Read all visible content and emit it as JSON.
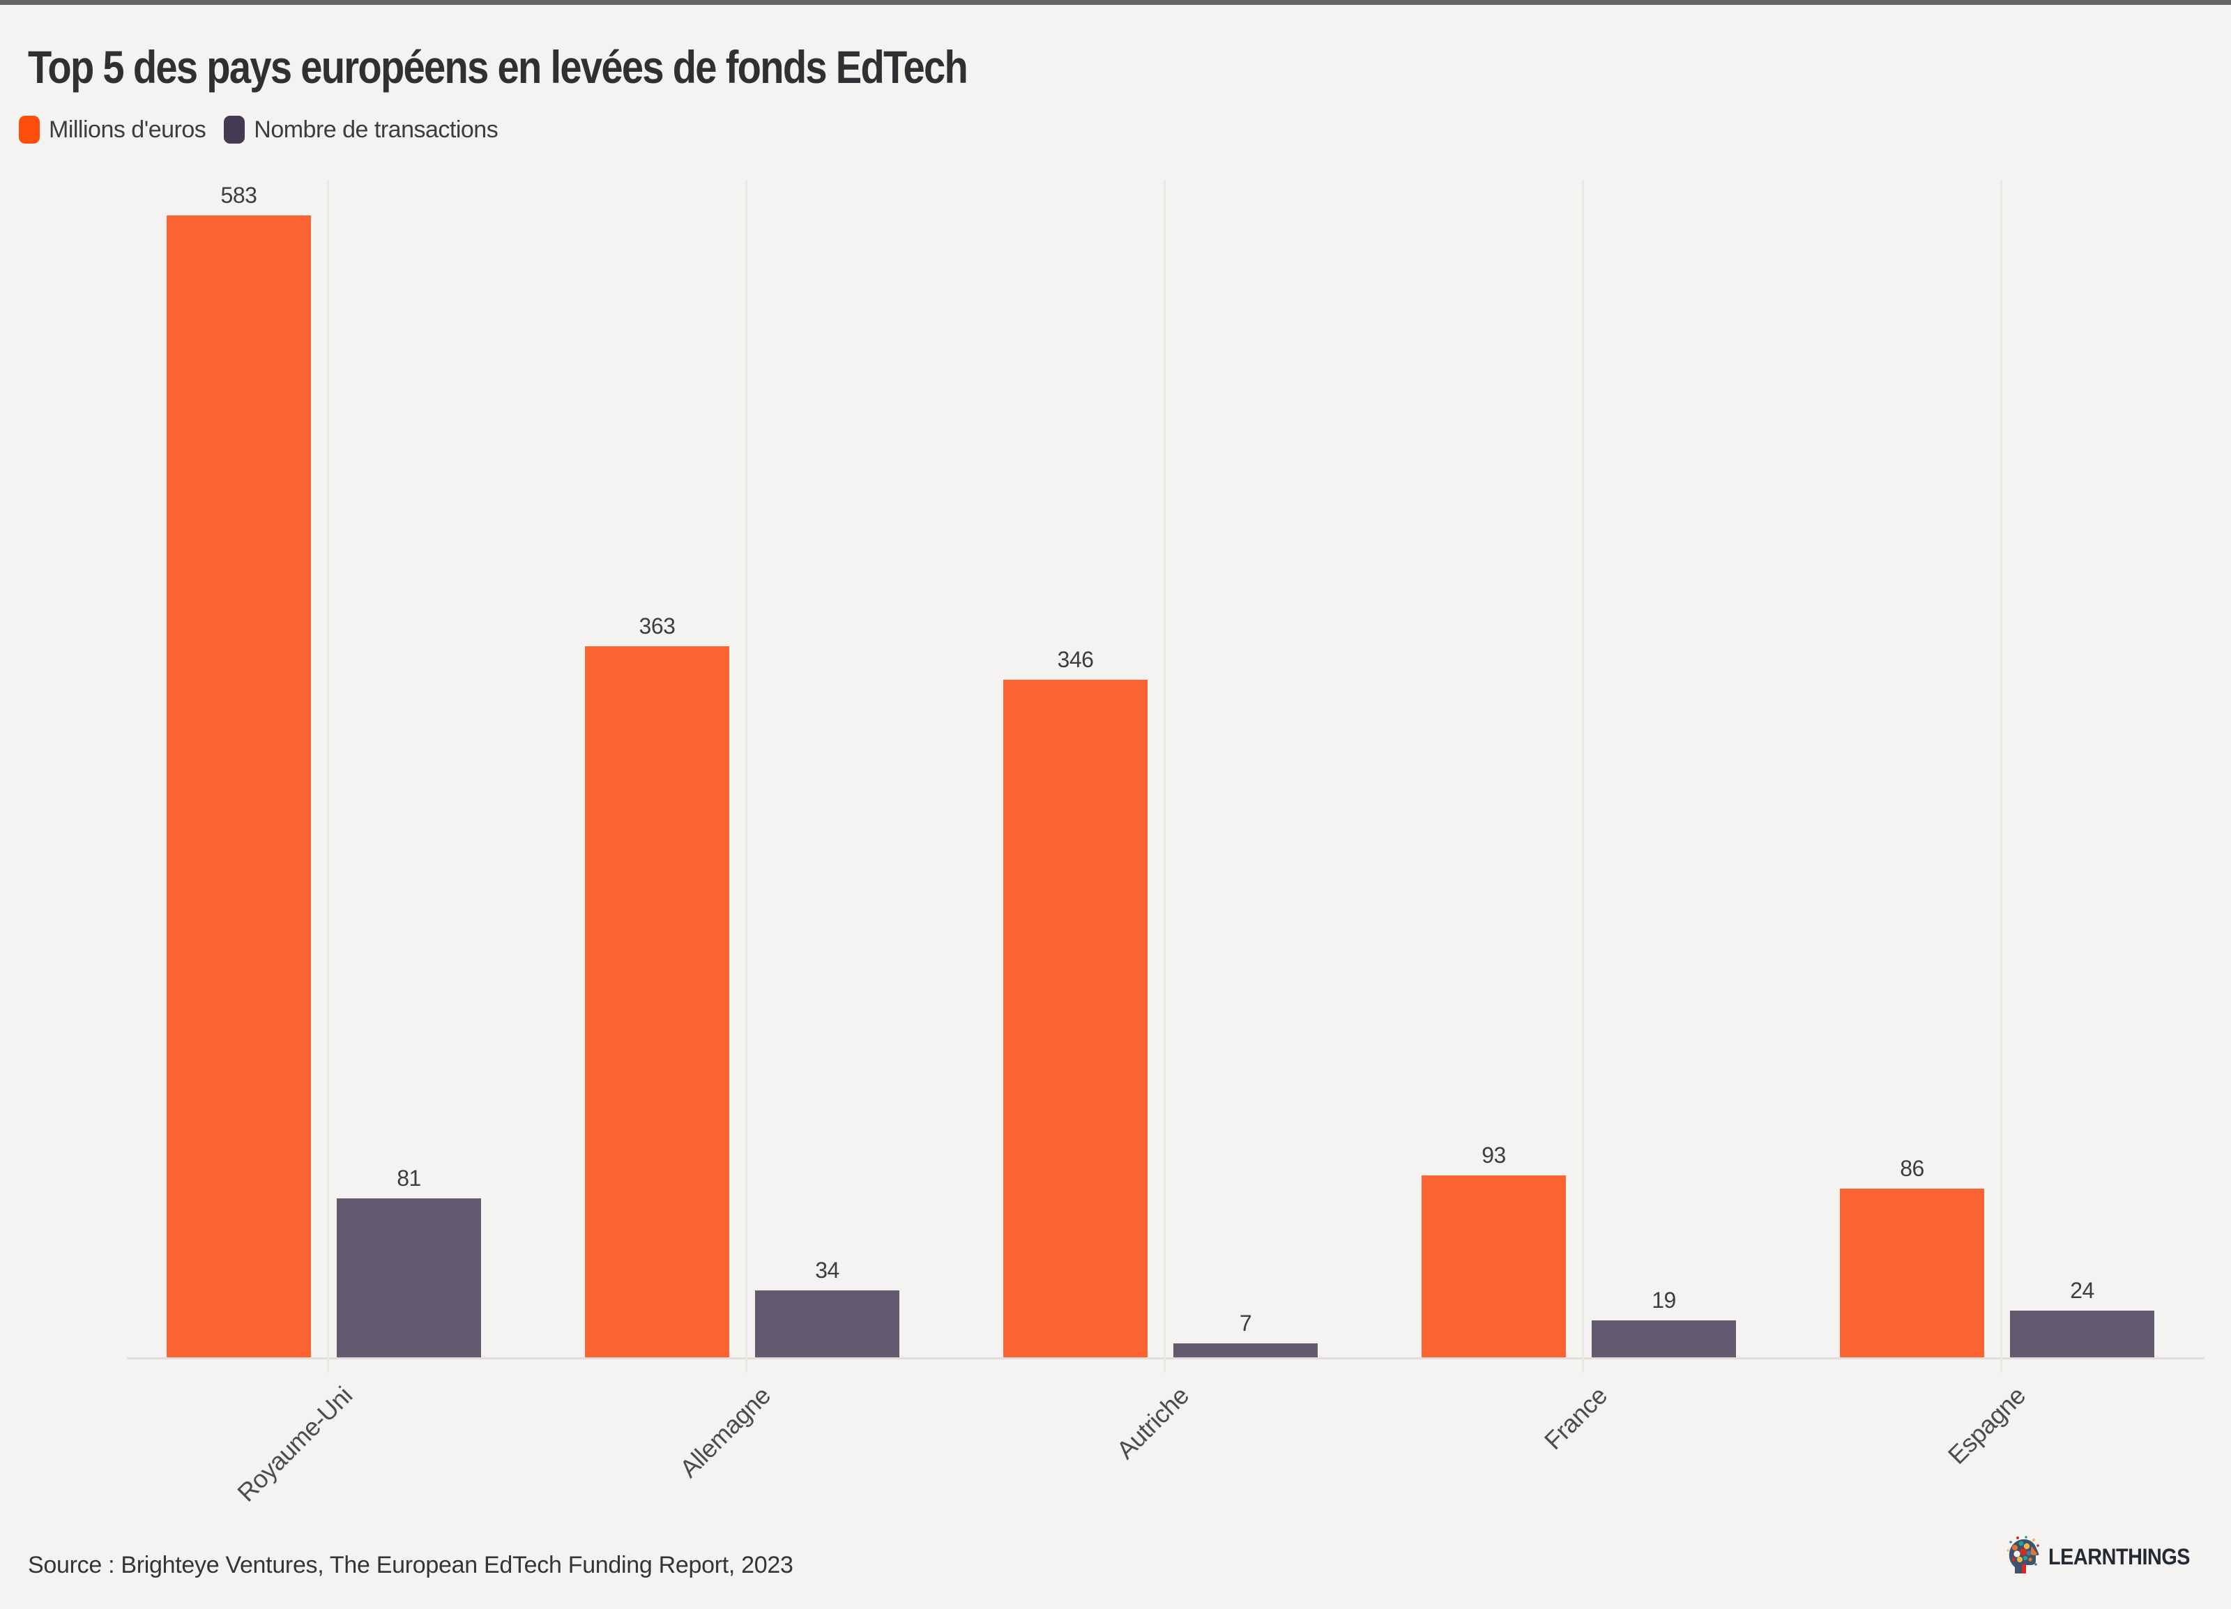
{
  "top_bar": {
    "color": "#656565"
  },
  "title": "Top 5 des pays européens en levées de fonds EdTech",
  "legend": [
    {
      "label": "Millions d'euros",
      "swatch_color": "#FE4E0E"
    },
    {
      "label": "Nombre de transactions",
      "swatch_color": "#443A52"
    }
  ],
  "chart_data": {
    "type": "bar",
    "title": "Top 5 des pays européens en levées de fonds EdTech",
    "categories": [
      "Royaume-Uni",
      "Allemagne",
      "Autriche",
      "France",
      "Espagne"
    ],
    "series": [
      {
        "name": "Millions d'euros",
        "color": "#FE4E0E",
        "bar_color": "#FB6431",
        "values": [
          583,
          363,
          346,
          93,
          86
        ]
      },
      {
        "name": "Nombre de transactions",
        "color": "#443A52",
        "bar_color": "#625A6E",
        "values": [
          81,
          34,
          7,
          19,
          24
        ]
      }
    ],
    "value_labels": [
      583,
      81,
      363,
      34,
      346,
      7,
      93,
      19,
      86,
      24
    ],
    "xlabel": "",
    "ylabel": "",
    "ylim": [
      0,
      600
    ],
    "grid": "vertical category gridlines",
    "legend_position": "top-left",
    "x_label_rotation": -45
  },
  "source": "Source : Brighteye Ventures, The European EdTech Funding Report, 2023",
  "logo": {
    "text": "LEARNTHINGS"
  },
  "colors": {
    "background": "#F4F3F1",
    "grid": "#EAE8E5",
    "axis_line": "#E0DDDA",
    "title_text": "#303034",
    "label_text": "#3D3D3D",
    "axis_label_text": "#4C4C4C",
    "source_text": "#343434"
  }
}
